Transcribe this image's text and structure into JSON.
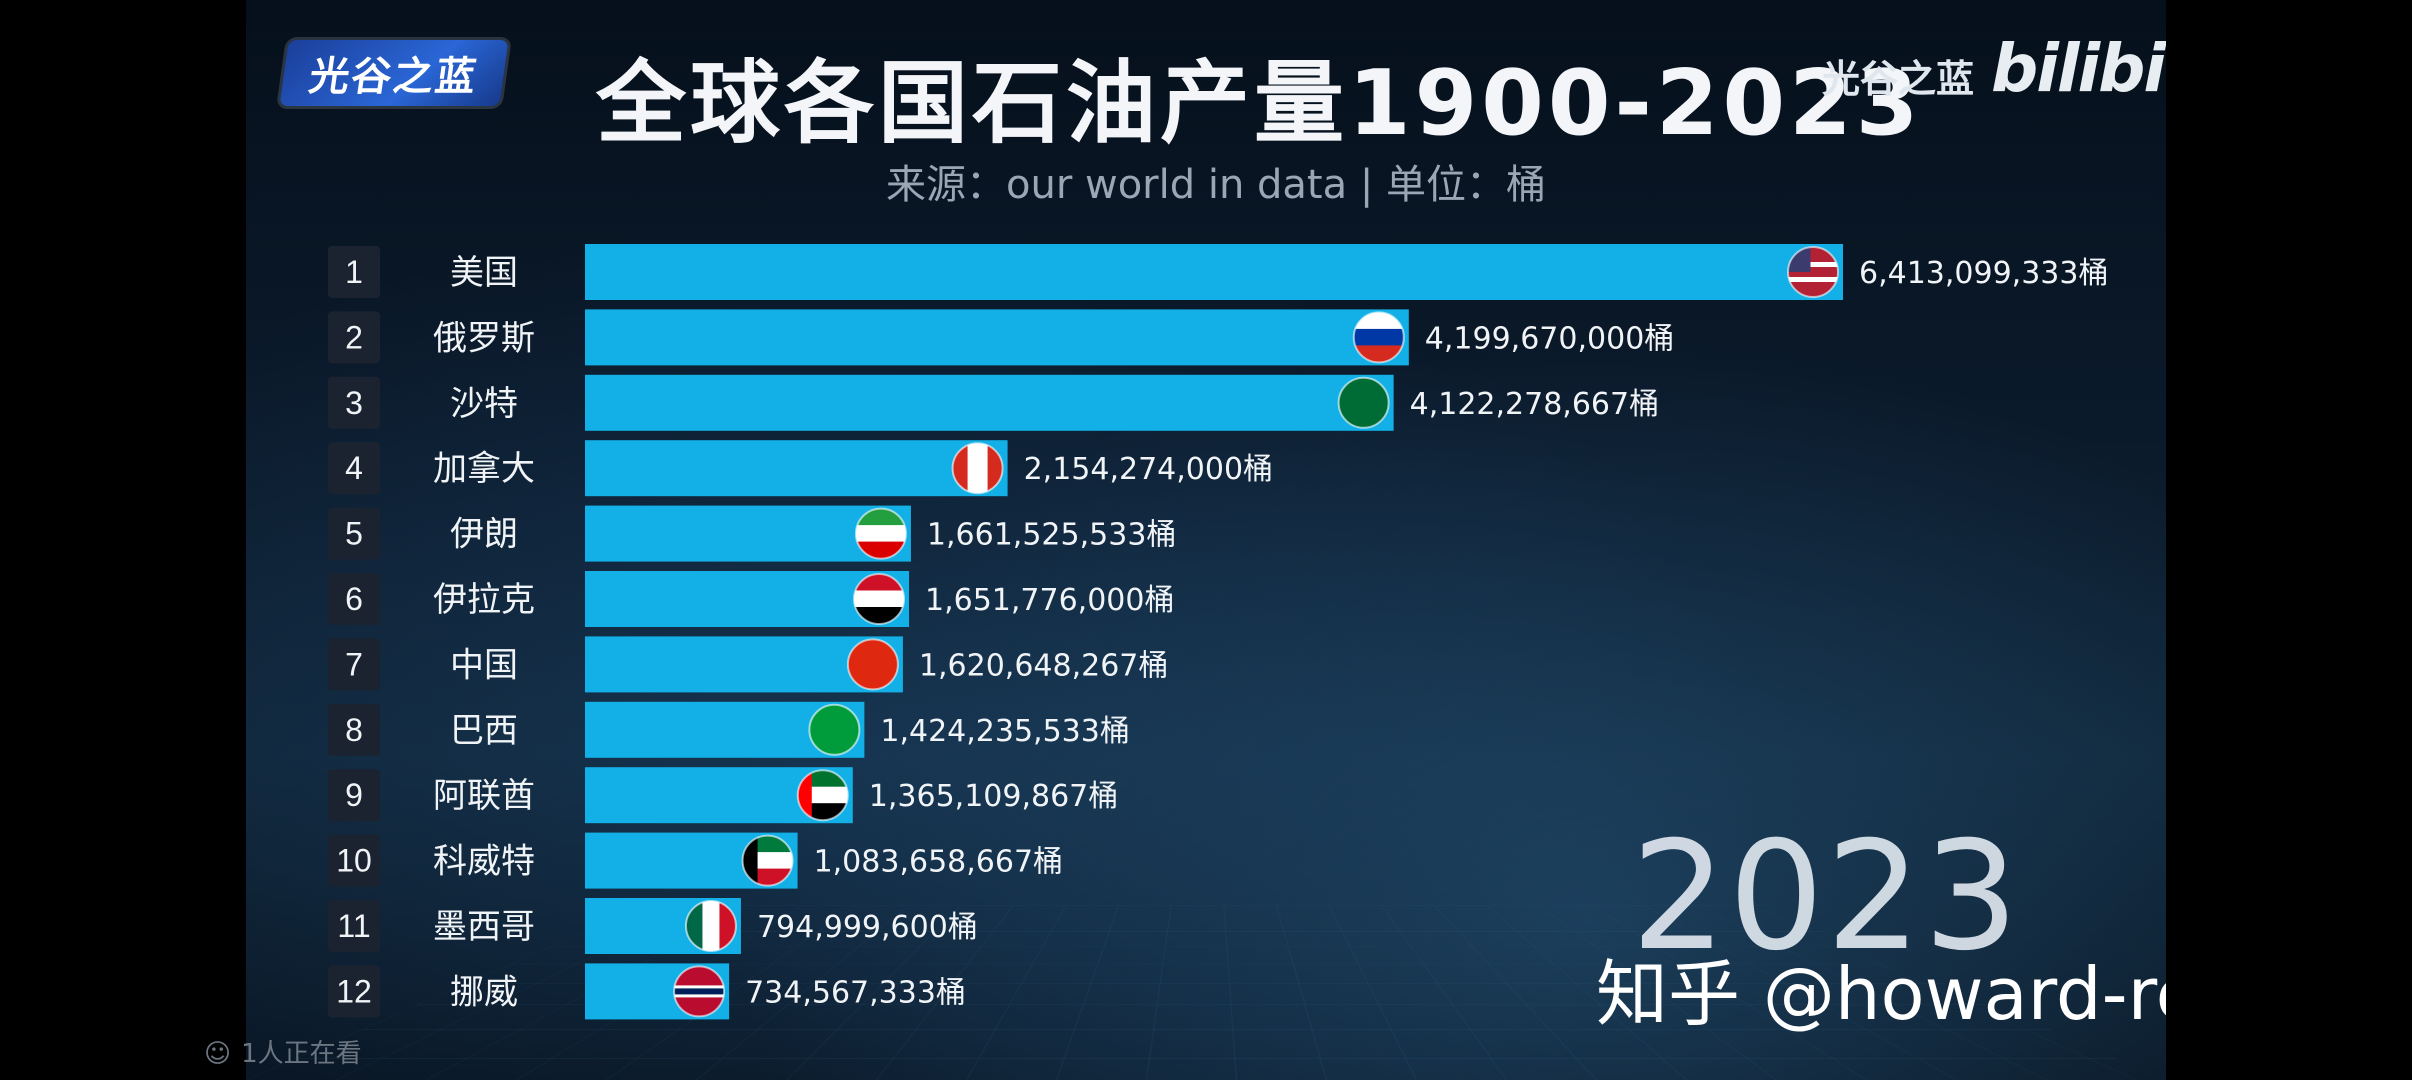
{
  "header": {
    "logo_text": "光谷之蓝",
    "title": "全球各国石油产量1900-2023",
    "subtitle": "来源：our world in data | 单位：桶",
    "brand_text": "光谷之蓝",
    "brand_site": "bilibili"
  },
  "year_label": "2023",
  "watermark": "知乎 @howard-remote",
  "viewer_count": "1人正在看",
  "colors": {
    "bar": "#12b0e6",
    "rank_box": "#1c2330",
    "background": "#0b1a2b"
  },
  "chart_data": {
    "type": "bar",
    "orientation": "horizontal",
    "unit": "桶",
    "xlim": [
      0,
      6413099333
    ],
    "categories": [
      "美国",
      "俄罗斯",
      "沙特",
      "加拿大",
      "伊朗",
      "伊拉克",
      "中国",
      "巴西",
      "阿联酋",
      "科威特",
      "墨西哥",
      "挪威"
    ],
    "ranks": [
      "1",
      "2",
      "3",
      "4",
      "5",
      "6",
      "7",
      "8",
      "9",
      "10",
      "11",
      "12"
    ],
    "values": [
      6413099333,
      4199670000,
      4122278667,
      2154274000,
      1661525533,
      1651776000,
      1620648267,
      1424235533,
      1365109867,
      1083658667,
      794999600,
      734567333
    ],
    "value_labels": [
      "6,413,099,333桶",
      "4,199,670,000桶",
      "4,122,278,667桶",
      "2,154,274,000桶",
      "1,661,525,533桶",
      "1,651,776,000桶",
      "1,620,648,267桶",
      "1,424,235,533桶",
      "1,365,109,867桶",
      "1,083,658,667桶",
      "794,999,600桶",
      "734,567,333桶"
    ],
    "flag_icons": [
      "us-flag-icon",
      "russia-flag-icon",
      "saudi-flag-icon",
      "canada-flag-icon",
      "iran-flag-icon",
      "iraq-flag-icon",
      "china-flag-icon",
      "brazil-flag-icon",
      "uae-flag-icon",
      "kuwait-flag-icon",
      "mexico-flag-icon",
      "norway-flag-icon"
    ]
  }
}
